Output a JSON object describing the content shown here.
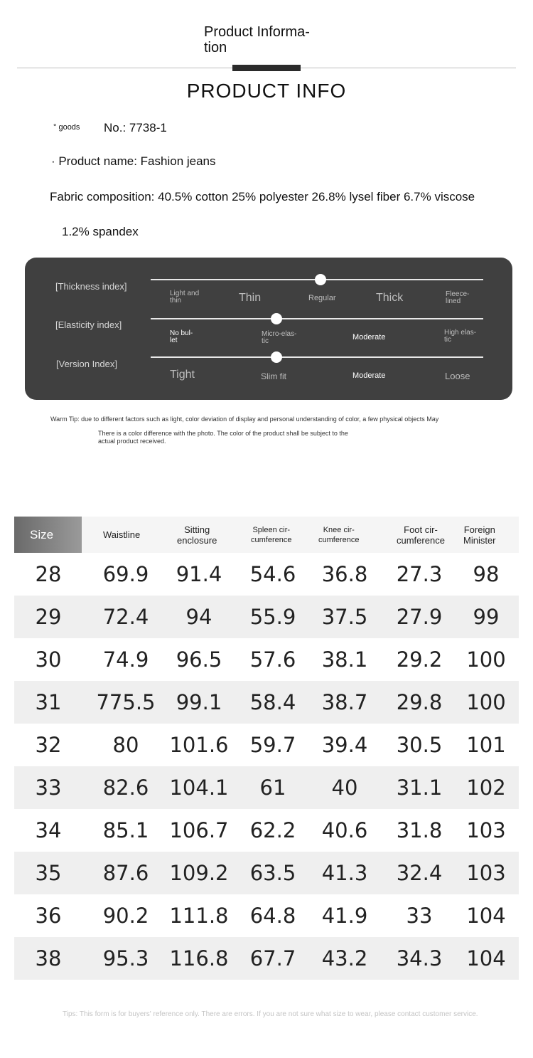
{
  "header": {
    "title": "Product Informa- tion",
    "subtitle": "PRODUCT INFO"
  },
  "info": {
    "goods_label": "° goods",
    "goods_no": "No.: 7738-1",
    "product_name": "· Product name: Fashion jeans",
    "fabric_line1": "Fabric composition: 40.5% cotton 25% polyester 26.8% lysel fiber 6.7% viscose",
    "fabric_line2": "1.2% spandex"
  },
  "indices": [
    {
      "label": "[Thickness index]",
      "options": [
        "Light and thin",
        "Thin",
        "Regular",
        "Thick",
        "Fleece-lined"
      ],
      "selected": "Regular"
    },
    {
      "label": "[Elasticity index]",
      "options": [
        "No bullet",
        "Micro-elastic",
        "Moderate",
        "High elastic"
      ],
      "selected": "Micro-elastic"
    },
    {
      "label": "[Version Index]",
      "options": [
        "Tight",
        "Slim fit",
        "Moderate",
        "Loose"
      ],
      "selected": "Slim fit"
    }
  ],
  "warm_tip": {
    "line1": "Warm Tip: due to different factors such as light, color deviation of display and personal understanding of color, a few physical objects May",
    "line2": "There is a color difference with the photo. The color of the product shall be subject to the actual product received."
  },
  "size_table": {
    "headers": [
      "Size",
      "Waistline",
      "Sitting enclosure",
      "Spleen circumference",
      "Knee circumference",
      "Foot circumference",
      "Foreign Minister"
    ],
    "rows": [
      [
        "28",
        "69.9",
        "91.4",
        "54.6",
        "36.8",
        "27.3",
        "98"
      ],
      [
        "29",
        "72.4",
        "94",
        "55.9",
        "37.5",
        "27.9",
        "99"
      ],
      [
        "30",
        "74.9",
        "96.5",
        "57.6",
        "38.1",
        "29.2",
        "100"
      ],
      [
        "31",
        "775.5",
        "99.1",
        "58.4",
        "38.7",
        "29.8",
        "100"
      ],
      [
        "32",
        "80",
        "101.6",
        "59.7",
        "39.4",
        "30.5",
        "101"
      ],
      [
        "33",
        "82.6",
        "104.1",
        "61",
        "40",
        "31.1",
        "102"
      ],
      [
        "34",
        "85.1",
        "106.7",
        "62.2",
        "40.6",
        "31.8",
        "103"
      ],
      [
        "35",
        "87.6",
        "109.2",
        "63.5",
        "41.3",
        "32.4",
        "103"
      ],
      [
        "36",
        "90.2",
        "111.8",
        "64.8",
        "41.9",
        "33",
        "104"
      ],
      [
        "38",
        "95.3",
        "116.8",
        "67.7",
        "43.2",
        "34.3",
        "104"
      ]
    ]
  },
  "footer_tip": "Tips: This form is for buyers' reference only. There are errors. If you are not sure what size to wear, please contact customer service."
}
